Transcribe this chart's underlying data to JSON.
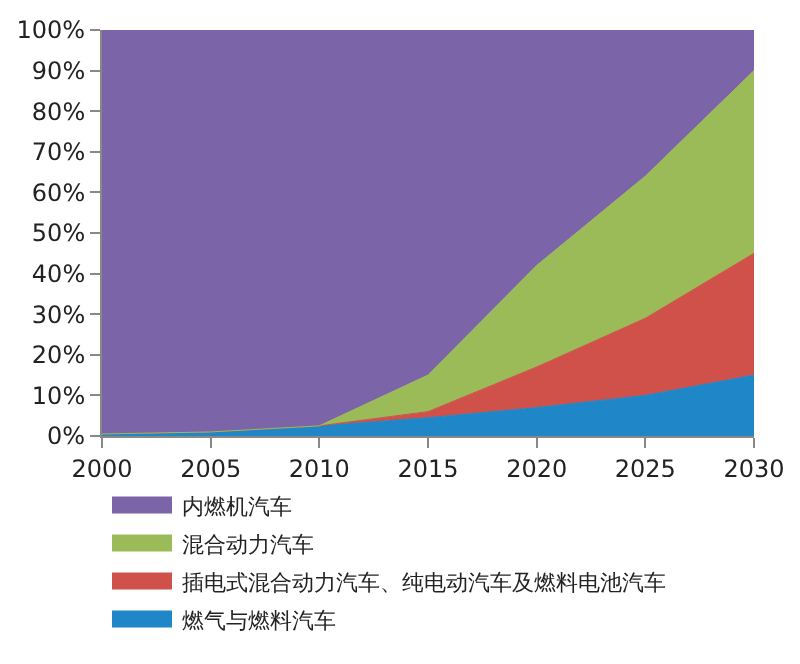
{
  "chart_data": {
    "type": "area",
    "stacked": true,
    "x": [
      2000,
      2005,
      2010,
      2015,
      2020,
      2025,
      2030
    ],
    "series": [
      {
        "name": "燃气与燃料汽车",
        "color": "#1f86c8",
        "values": [
          0.5,
          1,
          2.5,
          4.5,
          7,
          10,
          15
        ]
      },
      {
        "name": "插电式混合动力汽车、纯电动汽车及燃料电池汽车",
        "color": "#d0504a",
        "values": [
          0,
          0,
          0,
          1.5,
          10,
          19,
          30
        ]
      },
      {
        "name": "混合动力汽车",
        "color": "#9bbb59",
        "values": [
          0,
          0,
          0,
          9,
          25,
          35,
          45
        ]
      },
      {
        "name": "内燃机汽车",
        "color": "#7b64a8",
        "values": [
          99.5,
          99,
          97.5,
          85,
          58,
          36,
          10
        ]
      }
    ],
    "xlim": [
      2000,
      2030
    ],
    "xticks": [
      2000,
      2005,
      2010,
      2015,
      2020,
      2025,
      2030
    ],
    "ylim": [
      0,
      100
    ],
    "yticks": [
      {
        "value": 0,
        "label": "0%"
      },
      {
        "value": 10,
        "label": "10%"
      },
      {
        "value": 20,
        "label": "20%"
      },
      {
        "value": 30,
        "label": "30%"
      },
      {
        "value": 40,
        "label": "40%"
      },
      {
        "value": 50,
        "label": "50%"
      },
      {
        "value": 60,
        "label": "60%"
      },
      {
        "value": 70,
        "label": "70%"
      },
      {
        "value": 80,
        "label": "80%"
      },
      {
        "value": 90,
        "label": "90%"
      },
      {
        "value": 100,
        "label": "100%"
      }
    ],
    "legend": "bottom"
  }
}
